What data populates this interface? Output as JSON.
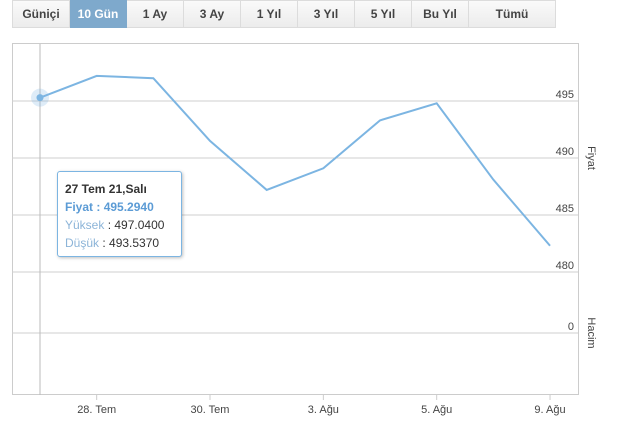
{
  "tabs": [
    "Güniçi",
    "10 Gün",
    "1 Ay",
    "3 Ay",
    "1 Yıl",
    "3 Yıl",
    "5 Yıl",
    "Bu Yıl",
    "Tümü"
  ],
  "active_tab": 1,
  "chart_data": {
    "type": "line",
    "categories": [
      null,
      "28. Tem",
      null,
      "30. Tem",
      null,
      "3. Ağu",
      null,
      "5. Ağu",
      null,
      "9. Ağu"
    ],
    "series": [
      {
        "name": "Fiyat",
        "color": "#7cb5e2",
        "values": [
          495.294,
          497.2,
          497.0,
          491.5,
          487.2,
          489.1,
          493.3,
          494.8,
          488.1,
          482.3
        ]
      }
    ],
    "ylim": [
      477.5,
      500
    ],
    "yticks": [
      480,
      485,
      490,
      495
    ],
    "ylabel": "Fiyat",
    "y2label": "Hacim",
    "y2ticks": [
      0
    ],
    "grid": true,
    "tooltip": {
      "title": "27 Tem 21,Salı",
      "rows": [
        {
          "label": "Fiyat",
          "value": "495.2940"
        },
        {
          "label": "Yüksek",
          "value": "497.0400"
        },
        {
          "label": "Düşük",
          "value": "493.5370"
        }
      ]
    }
  }
}
